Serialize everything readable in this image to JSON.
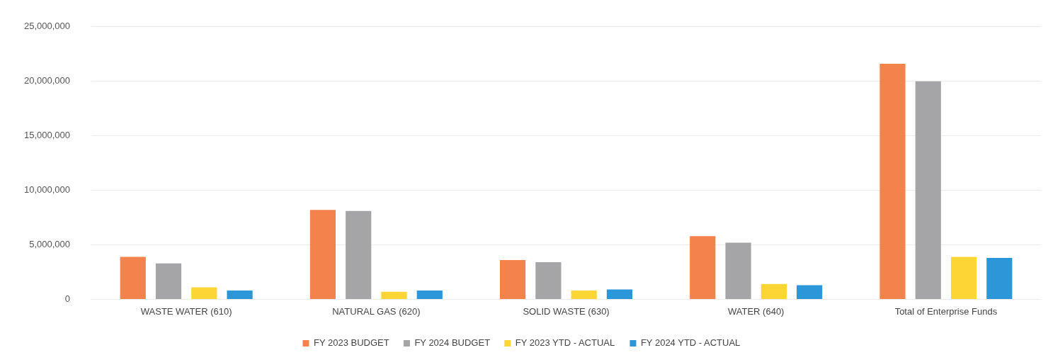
{
  "chart_data": {
    "type": "bar",
    "categories": [
      "WASTE WATER (610)",
      "NATURAL GAS (620)",
      "SOLID WASTE (630)",
      "WATER (640)",
      "Total of Enterprise Funds"
    ],
    "series": [
      {
        "name": "FY 2023 BUDGET",
        "color": "#f4824c",
        "values": [
          3900000,
          8200000,
          3600000,
          5800000,
          21600000
        ]
      },
      {
        "name": "FY 2024 BUDGET",
        "color": "#a5a4a6",
        "values": [
          3300000,
          8100000,
          3400000,
          5200000,
          20000000
        ]
      },
      {
        "name": "FY 2023 YTD - ACTUAL",
        "color": "#fdd535",
        "values": [
          1100000,
          700000,
          800000,
          1400000,
          3900000
        ]
      },
      {
        "name": "FY 2024 YTD - ACTUAL",
        "color": "#2b96d8",
        "values": [
          800000,
          800000,
          900000,
          1300000,
          3800000
        ]
      }
    ],
    "ylim": [
      0,
      25000000
    ],
    "yticks": [
      0,
      {
        "value": 5000000,
        "label": "5,000,000"
      },
      {
        "value": 10000000,
        "label": "10,000,000"
      },
      {
        "value": 15000000,
        "label": "15,000,000"
      },
      {
        "value": 20000000,
        "label": "20,000,000"
      },
      {
        "value": 25000000,
        "label": "25,000,000"
      }
    ],
    "grid": "y",
    "legend": "bottom"
  }
}
